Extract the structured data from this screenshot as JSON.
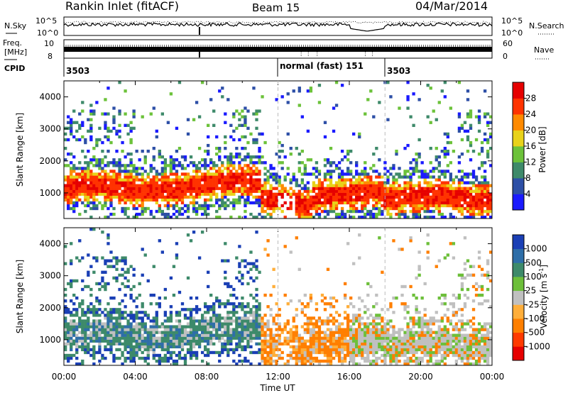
{
  "header": {
    "station": "Rankin Inlet (fitACF)",
    "beam": "Beam 15",
    "date": "04/Mar/2014"
  },
  "top_panels": {
    "nsky_label": "N.Sky",
    "nsky_ticks": [
      "10^5",
      "10^0"
    ],
    "nsearch_label": "N.Search",
    "freq_label_line1": "Freq.",
    "freq_label_line2": "[MHz]",
    "freq_ticks": [
      "10",
      "8"
    ],
    "nave_label": "Nave",
    "nave_ticks": [
      "60",
      "0"
    ],
    "cpid_label": "CPID",
    "cpid_segments": [
      {
        "label": "3503",
        "start_hour": 0
      },
      {
        "label": "normal (fast) 151",
        "start_hour": 12
      },
      {
        "label": "3503",
        "start_hour": 18
      }
    ]
  },
  "chart_data": [
    {
      "type": "heatmap",
      "title": "Power",
      "xlabel": "",
      "ylabel": "Slant Range [km]",
      "x_range_hours": [
        0,
        24
      ],
      "ylim": [
        200,
        4500
      ],
      "y_ticks": [
        1000,
        2000,
        3000,
        4000
      ],
      "colorbar_label": "Power [dB]",
      "colorbar_ticks": [
        4,
        8,
        12,
        16,
        20,
        24,
        28
      ],
      "colorbar_colors": [
        "#1a1aff",
        "#2d4fa6",
        "#3e8a6a",
        "#6cc23a",
        "#e8d21a",
        "#ff8a00",
        "#ff3300",
        "#e60000"
      ]
    },
    {
      "type": "heatmap",
      "title": "Velocity",
      "xlabel": "Time UT",
      "ylabel": "Slant Range [km]",
      "x_range_hours": [
        0,
        24
      ],
      "ylim": [
        200,
        4500
      ],
      "y_ticks": [
        1000,
        2000,
        3000,
        4000
      ],
      "x_tick_labels": [
        "00:00",
        "04:00",
        "08:00",
        "12:00",
        "16:00",
        "20:00",
        "00:00"
      ],
      "colorbar_label": "Velocity [m s",
      "colorbar_label_sup": "-1",
      "colorbar_ticks": [
        "1000",
        "500",
        "100",
        "25",
        "-25",
        "-100",
        "-500",
        "-1000"
      ],
      "colorbar_colors": [
        "#1a3fb5",
        "#2e6ea8",
        "#3d8a6a",
        "#6dbf3a",
        "#c0c0c0",
        "#ffae3a",
        "#ff7f00",
        "#ff3a00",
        "#e60000"
      ]
    }
  ]
}
